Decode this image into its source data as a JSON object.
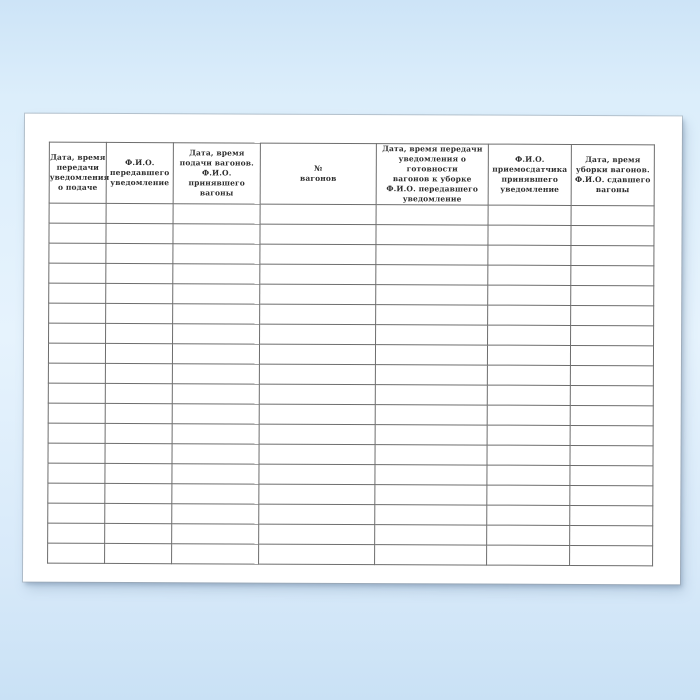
{
  "colors": {
    "background_blue": "#d9ebfa",
    "page_white": "#ffffff",
    "table_line_gray": "#6d6d6d",
    "header_text": "#2e2e2e"
  },
  "table": {
    "empty_row_count": 18,
    "columns": [
      {
        "label": "Дата, время\nпередачи\nуведомления\nо подаче"
      },
      {
        "label": "Ф.И.О.\nпередавшего\nуведомление"
      },
      {
        "label": "Дата, время\nподачи вагонов.\nФ.И.О. принявшего\nвагоны"
      },
      {
        "label": "№\nвагонов"
      },
      {
        "label": "Дата, время передачи\nуведомления о готовности\nвагонов к уборке\nФ.И.О. передавшего\nуведомление"
      },
      {
        "label": "Ф.И.О.\nприемосдатчика\nпринявшего\nуведомление"
      },
      {
        "label": "Дата, время\nуборки вагонов.\nФ.И.О. сдавшего\nвагоны"
      }
    ]
  }
}
